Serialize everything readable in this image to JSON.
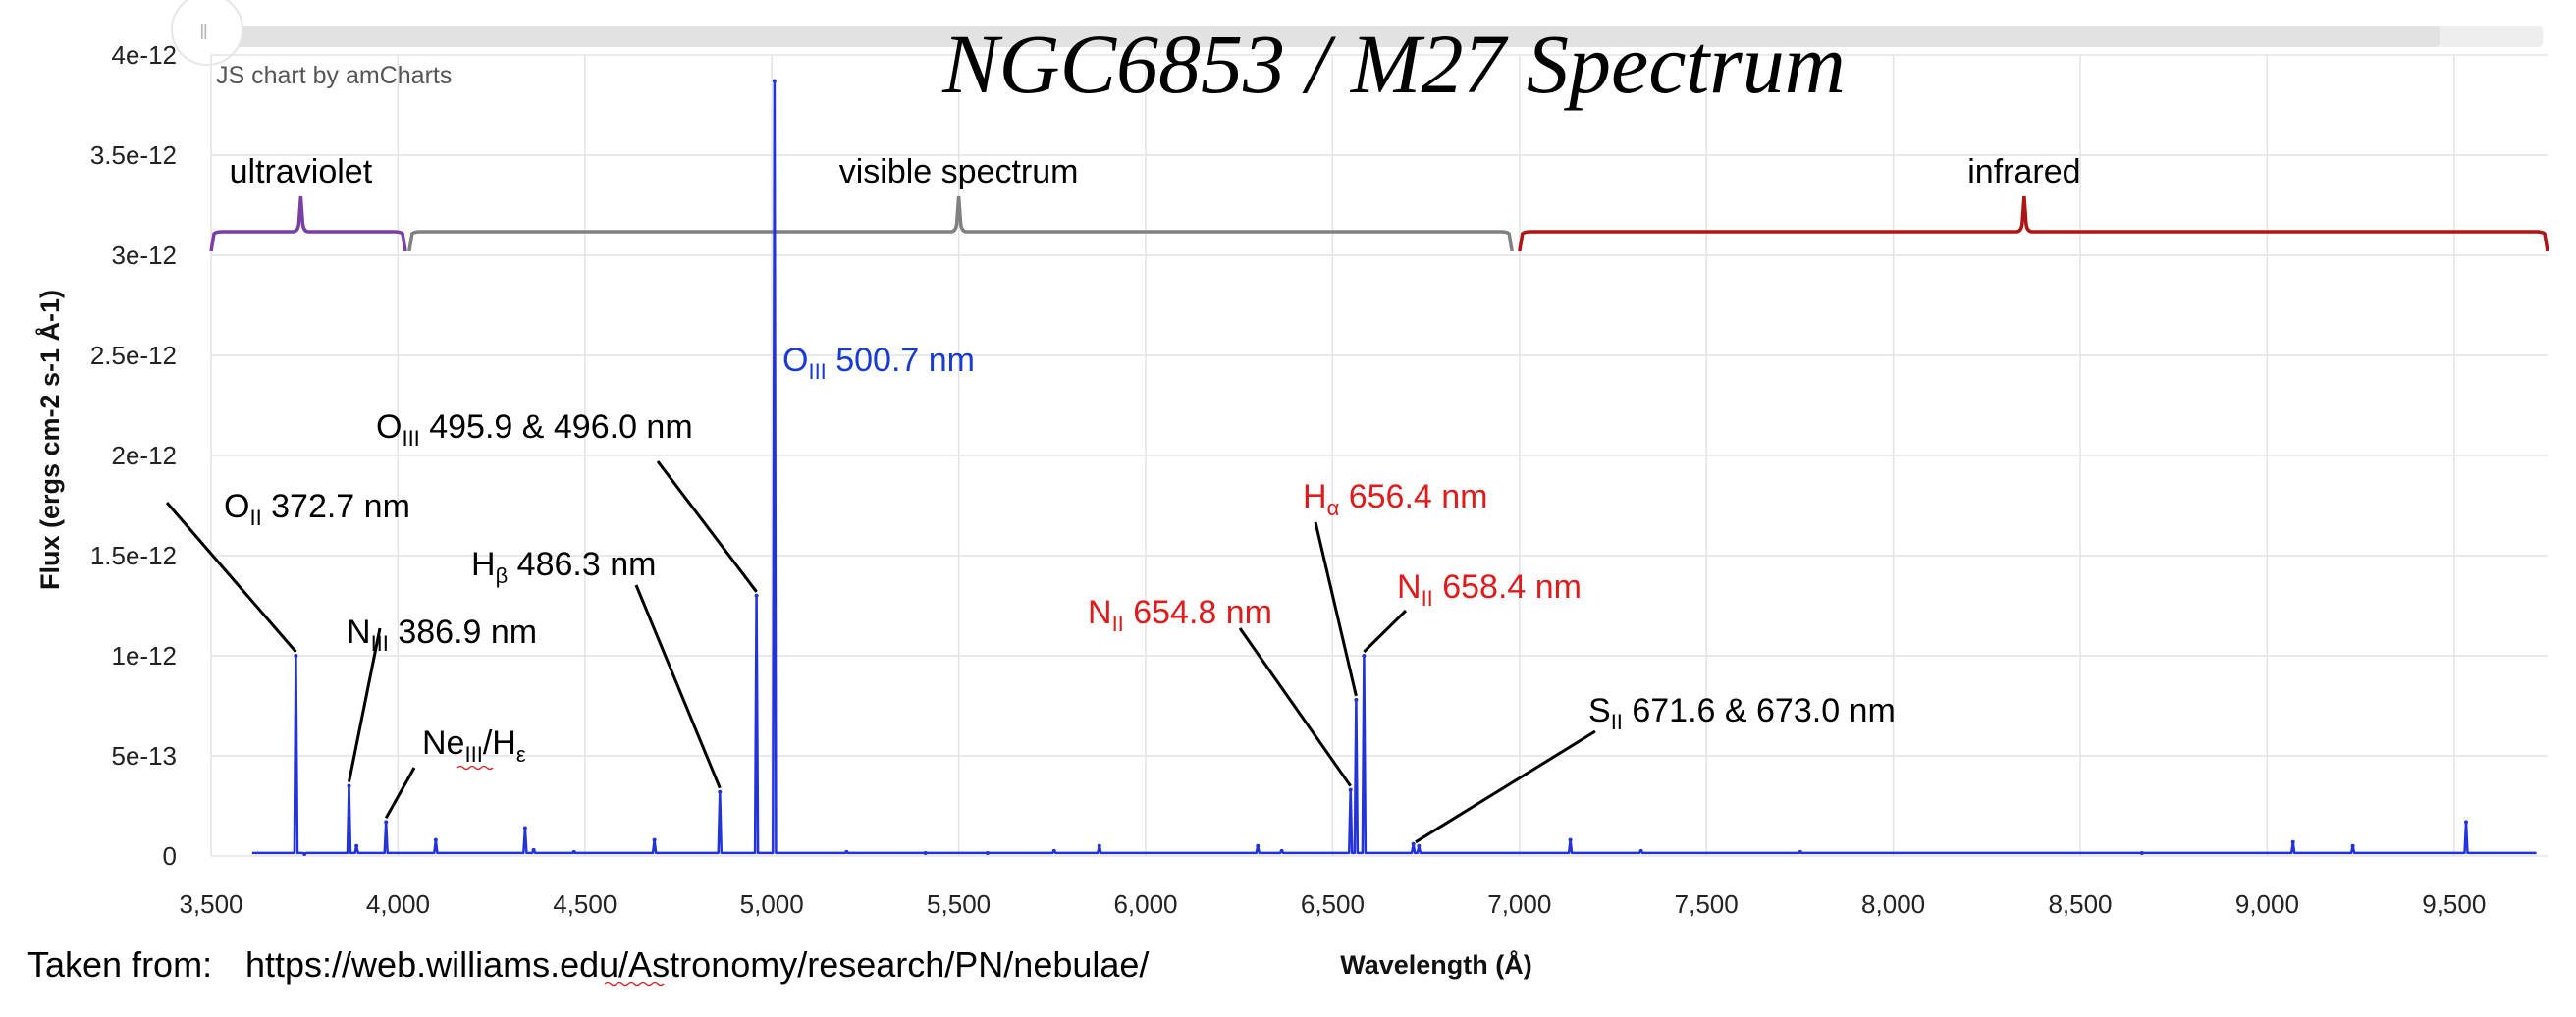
{
  "chart_data": {
    "type": "line",
    "title": "NGC6853 / M27 Spectrum",
    "credit": "JS chart by amCharts",
    "xlabel": "Wavelength (Å)",
    "ylabel": "Flux (ergs cm-2 s-1 Å-1)",
    "xlim": [
      3500,
      9750
    ],
    "ylim": [
      0,
      4e-12
    ],
    "x_ticks": [
      3500,
      4000,
      4500,
      5000,
      5500,
      6000,
      6500,
      7000,
      7500,
      8000,
      8500,
      9000,
      9500
    ],
    "x_tick_labels": [
      "3,500",
      "4,000",
      "4,500",
      "5,000",
      "5,500",
      "6,000",
      "6,500",
      "7,000",
      "7,500",
      "8,000",
      "8,500",
      "9,000",
      "9,500"
    ],
    "y_ticks": [
      0,
      5e-13,
      1e-12,
      1.5e-12,
      2e-12,
      2.5e-12,
      3e-12,
      3.5e-12,
      4e-12
    ],
    "y_tick_labels": [
      "0",
      "5e-13",
      "1e-12",
      "1.5e-12",
      "2e-12",
      "2.5e-12",
      "3e-12",
      "3.5e-12",
      "4e-12"
    ],
    "grid": true,
    "series": [
      {
        "name": "NGC6853 spectrum",
        "color": "#2233dd",
        "x_start": 3610,
        "x_end": 9720,
        "baseline": 1.5e-14,
        "peaks": [
          {
            "x": 3727,
            "y": 1e-12
          },
          {
            "x": 3750,
            "y": 1e-14
          },
          {
            "x": 3869,
            "y": 3.5e-13
          },
          {
            "x": 3889,
            "y": 5e-14
          },
          {
            "x": 3968,
            "y": 1.7e-13
          },
          {
            "x": 4101,
            "y": 8e-14
          },
          {
            "x": 4340,
            "y": 1.4e-13
          },
          {
            "x": 4363,
            "y": 3e-14
          },
          {
            "x": 4471,
            "y": 2e-14
          },
          {
            "x": 4686,
            "y": 8e-14
          },
          {
            "x": 4861,
            "y": 3.2e-13
          },
          {
            "x": 4959,
            "y": 1.3e-12
          },
          {
            "x": 5007,
            "y": 3.87e-12
          },
          {
            "x": 5200,
            "y": 2e-14
          },
          {
            "x": 5411,
            "y": 1.5e-14
          },
          {
            "x": 5577,
            "y": 1.5e-14
          },
          {
            "x": 5755,
            "y": 2.5e-14
          },
          {
            "x": 5876,
            "y": 5e-14
          },
          {
            "x": 6300,
            "y": 5e-14
          },
          {
            "x": 6364,
            "y": 2.5e-14
          },
          {
            "x": 6548,
            "y": 3.3e-13
          },
          {
            "x": 6563,
            "y": 7.8e-13
          },
          {
            "x": 6584,
            "y": 1e-12
          },
          {
            "x": 6716,
            "y": 6e-14
          },
          {
            "x": 6731,
            "y": 5e-14
          },
          {
            "x": 7136,
            "y": 8e-14
          },
          {
            "x": 7325,
            "y": 2.5e-14
          },
          {
            "x": 7751,
            "y": 2e-14
          },
          {
            "x": 8665,
            "y": 1.5e-14
          },
          {
            "x": 9069,
            "y": 7e-14
          },
          {
            "x": 9229,
            "y": 5e-14
          },
          {
            "x": 9532,
            "y": 1.7e-13
          }
        ]
      }
    ],
    "bands": [
      {
        "name": "ultraviolet",
        "label": "ultraviolet",
        "x_start": 3500,
        "x_end": 4020,
        "x_peak": 3740,
        "color": "#7a3fa6"
      },
      {
        "name": "visible",
        "label": "visible spectrum",
        "x_start": 4030,
        "x_end": 6980,
        "x_peak": 5500,
        "color": "#808080"
      },
      {
        "name": "infrared",
        "label": "infrared",
        "x_start": 7000,
        "x_end": 9750,
        "x_peak": 8350,
        "color": "#b01515"
      }
    ],
    "annotations": [
      {
        "name": "oii-3727",
        "main": "O",
        "sub": "II",
        "rest": " 372.7 nm",
        "color": "#000000",
        "x": 3727,
        "y": 1e-12
      },
      {
        "name": "niii-3869",
        "main": "N",
        "sub": "III",
        "rest": " 386.9 nm",
        "color": "#000000",
        "x": 3869,
        "y": 3.5e-13
      },
      {
        "name": "neiii-he",
        "main": "Ne",
        "sub": "III",
        "rest": "/H",
        "sub2": "ε",
        "color": "#000000",
        "x": 3968,
        "y": 1.7e-13
      },
      {
        "name": "hbeta-4863",
        "main": "H",
        "sub": "β",
        "rest": " 486.3 nm",
        "color": "#000000",
        "x": 4861,
        "y": 3.2e-13
      },
      {
        "name": "oiii-4959",
        "main": "O",
        "sub": "III",
        "rest": " 495.9 & 496.0 nm",
        "color": "#000000",
        "x": 4959,
        "y": 1.3e-12
      },
      {
        "name": "oiii-5007",
        "main": "O",
        "sub": "III",
        "rest": " 500.7 nm",
        "color": "#1a3ad6",
        "x": 5007,
        "y": 2.5e-12
      },
      {
        "name": "nii-6548",
        "main": "N",
        "sub": "II",
        "rest": " 654.8 nm",
        "color": "#e01b1b",
        "x": 6548,
        "y": 3.3e-13
      },
      {
        "name": "halpha-6564",
        "main": "H",
        "sub": "α",
        "rest": " 656.4 nm",
        "color": "#e01b1b",
        "x": 6563,
        "y": 7.8e-13
      },
      {
        "name": "nii-6584",
        "main": "N",
        "sub": "II",
        "rest": " 658.4 nm",
        "color": "#e01b1b",
        "x": 6584,
        "y": 1e-12
      },
      {
        "name": "sii-6716",
        "main": "S",
        "sub": "II",
        "rest": " 671.6 & 673.0 nm",
        "color": "#000000",
        "x": 6722,
        "y": 5e-14
      }
    ]
  },
  "source": {
    "prefix": "Taken from:",
    "url": "https://web.williams.edu/Astronomy/research/PN/nebulae/"
  }
}
